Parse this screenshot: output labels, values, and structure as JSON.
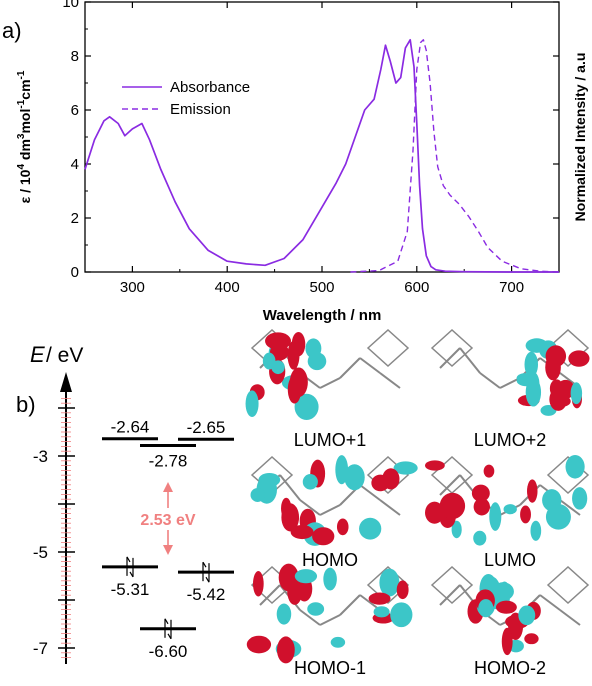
{
  "panel_a": {
    "label": "a)"
  },
  "panel_b": {
    "label": "b)"
  },
  "colors": {
    "absorbance": "#8a2be2",
    "emission": "#8a2be2",
    "gap_arrow": "#f08080",
    "tick_red": "#f08080"
  },
  "chart_data": [
    {
      "type": "line",
      "xlabel": "Wavelength / nm",
      "ylabel_parts": [
        "ε / 10",
        "4",
        " dm",
        "3",
        "mol",
        "-1",
        "cm",
        "-1"
      ],
      "ylabel_right": "Normalized Intensity / a.u",
      "xlim": [
        250,
        750
      ],
      "ylim": [
        0,
        10
      ],
      "xticks": [
        "300",
        "400",
        "500",
        "600",
        "700"
      ],
      "yticks": [
        "0",
        "2",
        "4",
        "6",
        "8",
        "10"
      ],
      "legend_position": "top-left",
      "series": [
        {
          "name": "Absorbance",
          "style": "solid",
          "x": [
            250,
            260,
            270,
            276,
            285,
            292,
            300,
            310,
            318,
            330,
            345,
            360,
            380,
            400,
            420,
            440,
            460,
            480,
            500,
            515,
            525,
            535,
            545,
            555,
            562,
            567,
            572,
            578,
            583,
            588,
            593,
            597,
            600,
            603,
            606,
            610,
            615,
            620,
            630,
            650,
            700,
            750
          ],
          "values": [
            3.8,
            4.9,
            5.6,
            5.75,
            5.5,
            5.05,
            5.3,
            5.5,
            4.9,
            3.8,
            2.6,
            1.6,
            0.8,
            0.4,
            0.3,
            0.25,
            0.5,
            1.2,
            2.4,
            3.3,
            4.0,
            5.0,
            6.0,
            6.4,
            7.5,
            8.4,
            7.8,
            7.0,
            7.2,
            8.3,
            8.6,
            7.6,
            5.5,
            3.2,
            1.6,
            0.6,
            0.2,
            0.08,
            0.03,
            0.01,
            0.0,
            0.0
          ]
        },
        {
          "name": "Emission",
          "style": "dashed",
          "x": [
            530,
            560,
            580,
            590,
            596,
            600,
            604,
            607,
            610,
            614,
            618,
            622,
            628,
            635,
            645,
            655,
            665,
            675,
            690,
            710,
            730,
            750
          ],
          "values": [
            0.0,
            0.05,
            0.4,
            1.5,
            4.5,
            7.5,
            8.5,
            8.6,
            8.2,
            7.0,
            5.2,
            3.9,
            3.2,
            2.85,
            2.5,
            2.05,
            1.5,
            0.9,
            0.4,
            0.12,
            0.03,
            0.0
          ]
        }
      ]
    },
    {
      "type": "energy_level_diagram",
      "ylabel": "E / eV",
      "ylim": [
        -7.4,
        -1.5
      ],
      "yticks": [
        "-3",
        "-5",
        "-7"
      ],
      "levels": [
        {
          "energy": -2.64,
          "label": "-2.64",
          "column": "left",
          "occupied": false
        },
        {
          "energy": -2.65,
          "label": "-2.65",
          "column": "right",
          "occupied": false
        },
        {
          "energy": -2.78,
          "label": "-2.78",
          "column": "middle",
          "occupied": false
        },
        {
          "energy": -5.31,
          "label": "-5.31",
          "column": "left",
          "occupied": true
        },
        {
          "energy": -5.42,
          "label": "-5.42",
          "column": "right",
          "occupied": true
        },
        {
          "energy": -6.6,
          "label": "-6.60",
          "column": "middle",
          "occupied": true
        }
      ],
      "gap_label": "2.53 eV",
      "orbitals": [
        "LUMO+1",
        "LUMO+2",
        "HOMO",
        "LUMO",
        "HOMO-1",
        "HOMO-2"
      ]
    }
  ]
}
